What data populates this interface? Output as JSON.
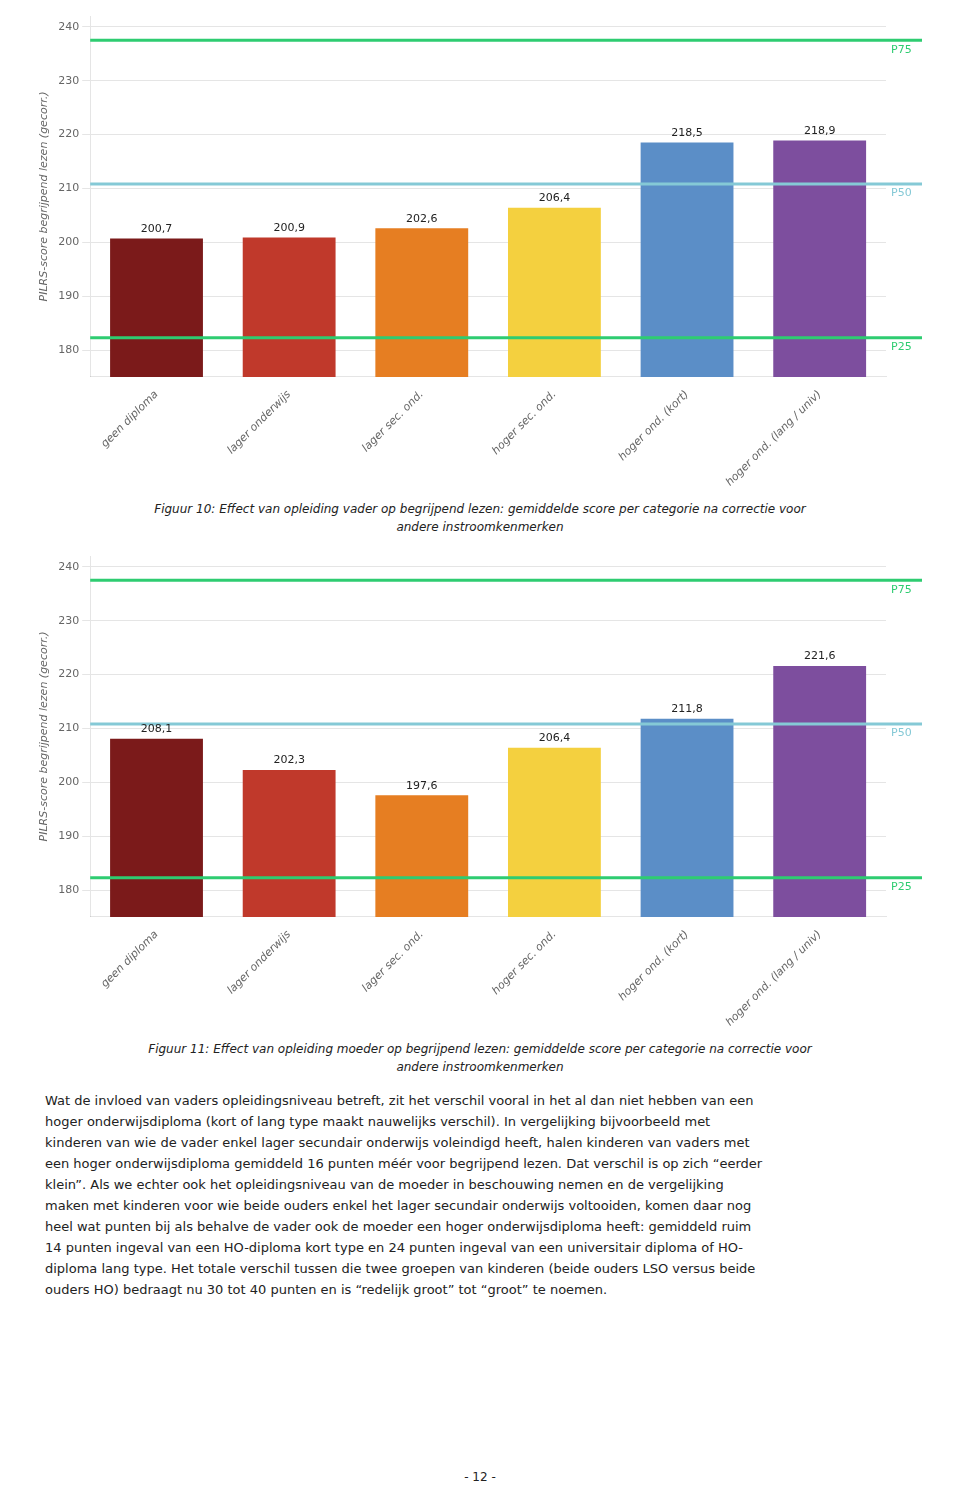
{
  "chart_data": [
    {
      "type": "bar",
      "categories": [
        "geen diploma",
        "lager onderwijs",
        "lager sec. ond.",
        "hoger sec. ond.",
        "hoger ond. (kort)",
        "hoger ond. (lang / univ)"
      ],
      "values": [
        200.7,
        200.9,
        202.6,
        206.4,
        218.5,
        218.9
      ],
      "value_labels": [
        "200,7",
        "200,9",
        "202,6",
        "206,4",
        "218,5",
        "218,9"
      ],
      "colors": [
        "#7B1A1A",
        "#C0392B",
        "#E67E22",
        "#F4D03F",
        "#5B8EC7",
        "#7D4E9E"
      ],
      "ylim": [
        175,
        242
      ],
      "yticks": [
        180,
        190,
        200,
        210,
        220,
        230,
        240
      ],
      "y_label": "PILRS-score begrijpend lezen (gecorr.)",
      "grid": true,
      "data_labels": true,
      "reference_lines": [
        {
          "value": 237.5,
          "label": "P75",
          "color": "#2ECC71"
        },
        {
          "value": 210.8,
          "label": "P50",
          "color": "#85C9D6"
        },
        {
          "value": 182.3,
          "label": "P25",
          "color": "#2ECC71"
        }
      ],
      "caption": [
        "Figuur 10: Effect van opleiding vader op begrijpend lezen: gemiddelde score per categorie na correctie voor",
        "andere instroomkenmerken"
      ]
    },
    {
      "type": "bar",
      "categories": [
        "geen diploma",
        "lager onderwijs",
        "lager sec. ond.",
        "hoger sec. ond.",
        "hoger ond. (kort)",
        "hoger ond. (lang / univ)"
      ],
      "values": [
        208.1,
        202.3,
        197.6,
        206.4,
        211.8,
        221.6
      ],
      "value_labels": [
        "208,1",
        "202,3",
        "197,6",
        "206,4",
        "211,8",
        "221,6"
      ],
      "colors": [
        "#7B1A1A",
        "#C0392B",
        "#E67E22",
        "#F4D03F",
        "#5B8EC7",
        "#7D4E9E"
      ],
      "ylim": [
        175,
        242
      ],
      "yticks": [
        180,
        190,
        200,
        210,
        220,
        230,
        240
      ],
      "y_label": "PILRS-score begrijpend lezen (gecorr.)",
      "grid": true,
      "data_labels": true,
      "reference_lines": [
        {
          "value": 237.5,
          "label": "P75",
          "color": "#2ECC71"
        },
        {
          "value": 210.8,
          "label": "P50",
          "color": "#85C9D6"
        },
        {
          "value": 182.3,
          "label": "P25",
          "color": "#2ECC71"
        }
      ],
      "caption": [
        "Figuur 11: Effect van opleiding moeder op begrijpend lezen: gemiddelde score per categorie na correctie voor",
        "andere instroomkenmerken"
      ]
    }
  ],
  "body_text": [
    "Wat de invloed van vaders opleidingsniveau betreft, zit het verschil vooral in het al dan niet hebben van een",
    "hoger onderwijsdiploma (kort of lang type maakt nauwelijks verschil). In vergelijking bijvoorbeeld met",
    "kinderen van wie de vader enkel lager secundair onderwijs voleindigd heeft, halen kinderen van vaders met",
    "een hoger onderwijsdiploma gemiddeld 16 punten méér voor begrijpend lezen. Dat verschil is op zich “eerder",
    "klein”. Als we echter ook het opleidingsniveau van de moeder in beschouwing nemen en de vergelijking",
    "maken met kinderen voor wie beide ouders enkel het lager secundair onderwijs voltooiden, komen daar nog",
    "heel wat punten bij als behalve de vader ook de moeder een hoger onderwijsdiploma heeft: gemiddeld ruim",
    "14 punten ingeval van een HO-diploma kort type en 24 punten ingeval van een universitair diploma of HO-",
    "diploma lang type. Het totale verschil tussen die twee groepen van kinderen (beide ouders LSO versus beide",
    "ouders HO) bedraagt nu 30 tot 40 punten en is “redelijk groot” tot “groot” te noemen."
  ],
  "page_number": "- 12 -"
}
